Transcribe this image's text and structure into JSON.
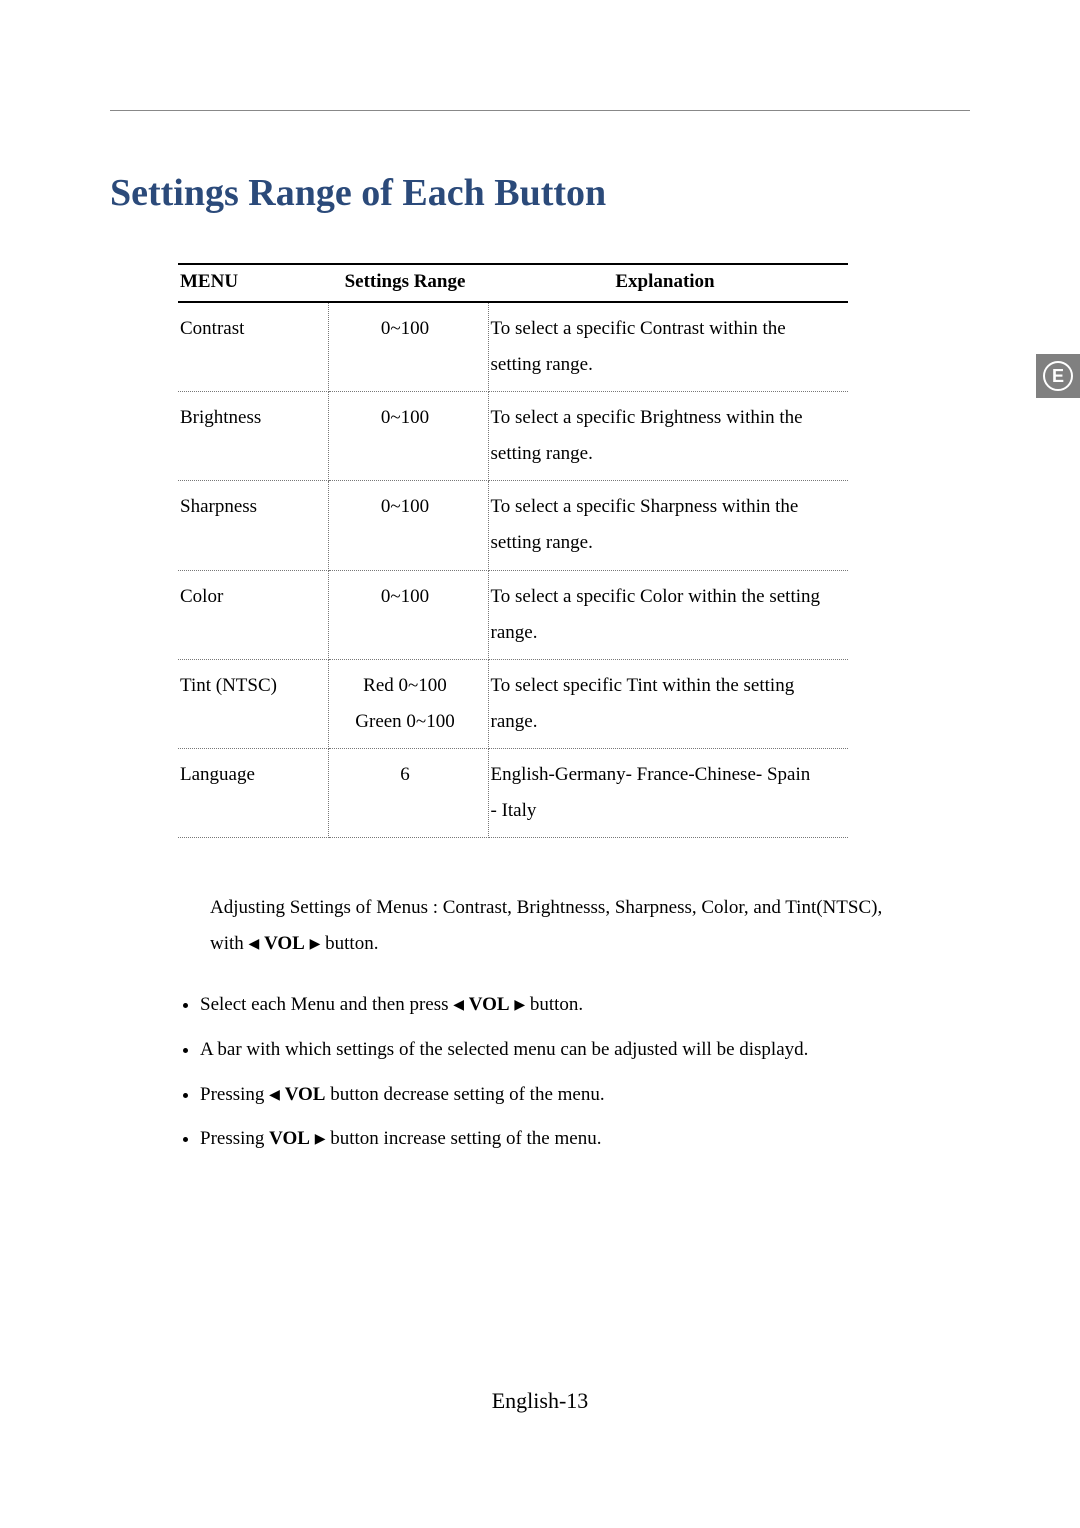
{
  "title": "Settings Range of Each Button",
  "tab_badge": {
    "letter": "E",
    "bg": "#808080",
    "fg": "#ffffff"
  },
  "table": {
    "headers": {
      "menu": "MENU",
      "range": "Settings Range",
      "expl": "Explanation"
    },
    "rows": [
      {
        "menu": "Contrast",
        "range": "0~100",
        "expl": "To select a specific Contrast within the setting range."
      },
      {
        "menu": "Brightness",
        "range": "0~100",
        "expl": "To select a specific Brightness within the setting range."
      },
      {
        "menu": "Sharpness",
        "range": "0~100",
        "expl": "To select a specific Sharpness within the setting range."
      },
      {
        "menu": "Color",
        "range": "0~100",
        "expl": "To select a specific Color within the setting range."
      },
      {
        "menu": "Tint (NTSC)",
        "range": "Red 0~100\nGreen 0~100",
        "expl": "To select specific Tint within the setting range."
      },
      {
        "menu": "Language",
        "range": "6",
        "expl": "English-Germany- France-Chinese- Spain\n- Italy"
      }
    ]
  },
  "note": {
    "line1": "Adjusting Settings of Menus : Contrast, Brightnesss, Sharpness, Color, and Tint(NTSC),",
    "line2_pre": "with ",
    "vol_label": "VOL",
    "line2_post": " button."
  },
  "bullets": [
    {
      "pre": "Select each Menu and then press ",
      "vol": "VOL",
      "left": true,
      "right": true,
      "post": " button."
    },
    {
      "pre": "A bar with which settings of the selected menu can be adjusted will be displayd.",
      "vol": "",
      "left": false,
      "right": false,
      "post": ""
    },
    {
      "pre": "Pressing ",
      "vol": "VOL",
      "left": true,
      "right": false,
      "post": " button decrease setting of the menu."
    },
    {
      "pre": "Pressing ",
      "vol": "VOL",
      "left": false,
      "right": true,
      "post": " button increase setting of the menu."
    }
  ],
  "footer": "English-13",
  "glyphs": {
    "left": "◀",
    "right": "▶"
  }
}
